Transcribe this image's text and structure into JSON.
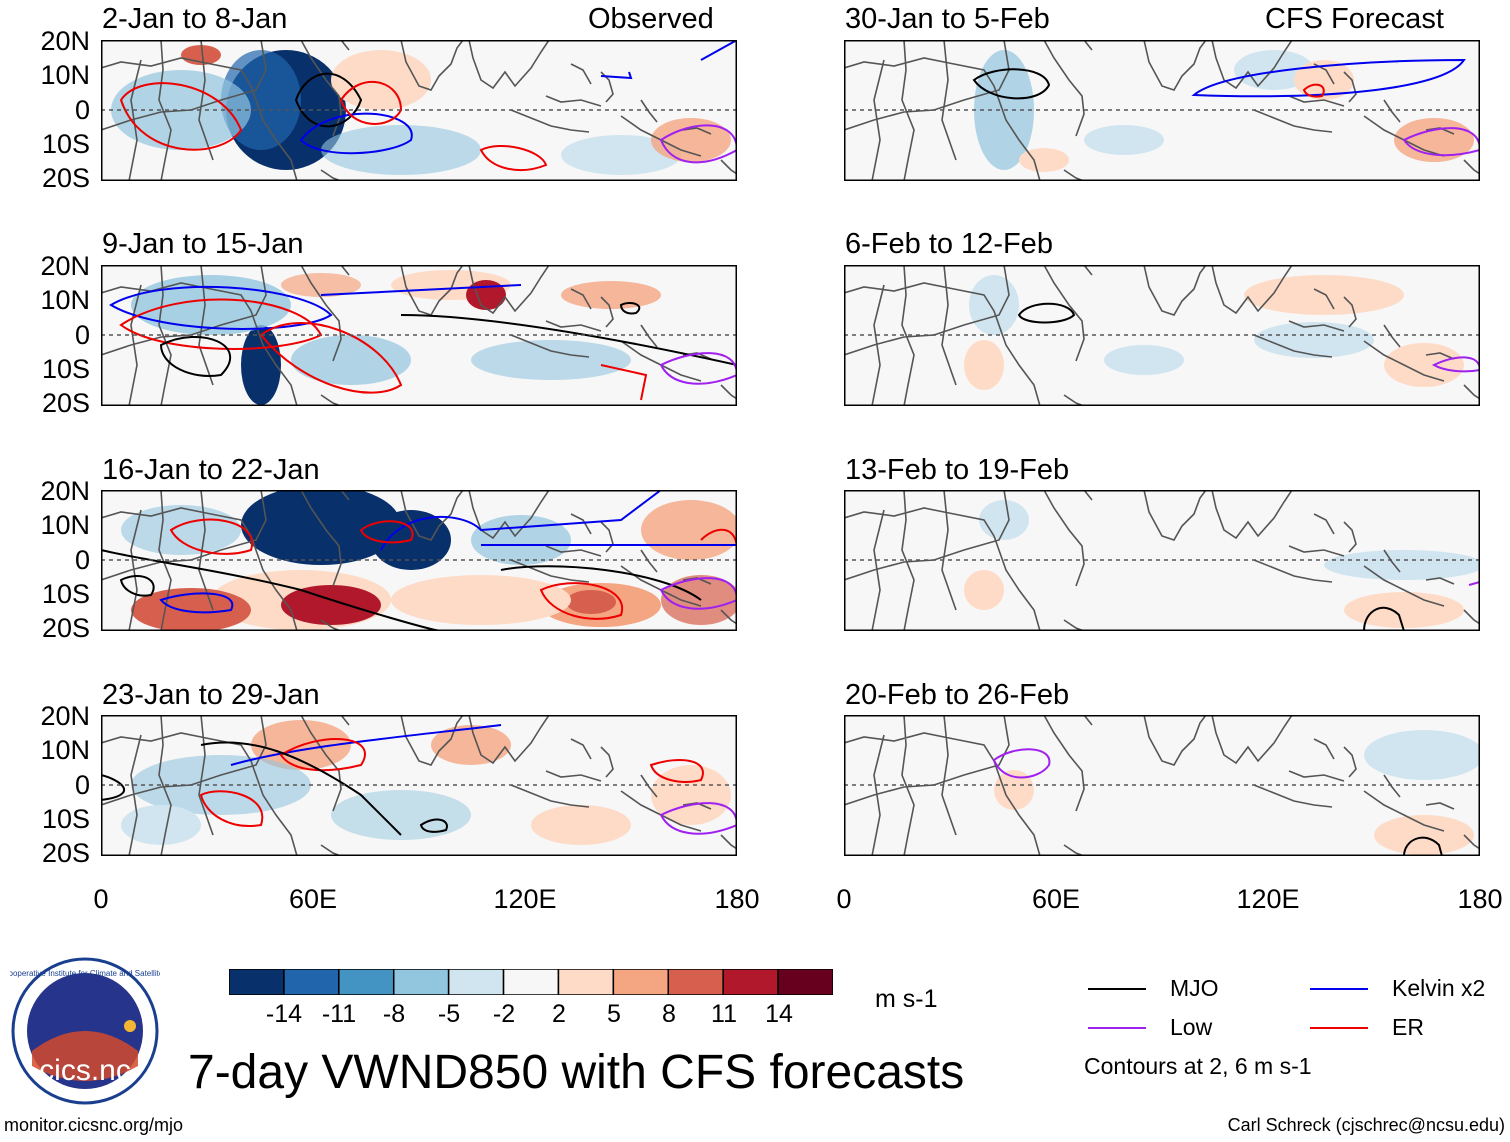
{
  "figure": {
    "title": "7-day VWND850 with CFS forecasts",
    "website": "monitor.cicsnc.org/mjo",
    "credit": "Carl Schreck (cjschrec@ncsu.edu)",
    "observed_label": "Observed",
    "forecast_label": "CFS Forecast"
  },
  "logo": {
    "text": "cics.nc",
    "ring_text": "Cooperative Institute for Climate and Satellites"
  },
  "axes": {
    "lat_labels": [
      "20N",
      "10N",
      "0",
      "10S",
      "20S"
    ],
    "lon_labels": [
      "0",
      "60E",
      "120E",
      "180"
    ]
  },
  "panels": {
    "observed": [
      {
        "period": "2-Jan to 8-Jan"
      },
      {
        "period": "9-Jan to 15-Jan"
      },
      {
        "period": "16-Jan to 22-Jan"
      },
      {
        "period": "23-Jan to 29-Jan"
      }
    ],
    "forecast": [
      {
        "period": "30-Jan to 5-Feb"
      },
      {
        "period": "6-Feb to 12-Feb"
      },
      {
        "period": "13-Feb to 19-Feb"
      },
      {
        "period": "20-Feb to 26-Feb"
      }
    ]
  },
  "colorbar": {
    "units": "m s-1",
    "ticks": [
      "-14",
      "-11",
      "-8",
      "-5",
      "-2",
      "2",
      "5",
      "8",
      "11",
      "14"
    ],
    "colors": [
      "#08306b",
      "#2166ac",
      "#4393c3",
      "#92c5de",
      "#d1e5f0",
      "#f7f7f7",
      "#fddbc7",
      "#f4a582",
      "#d6604d",
      "#b2182b",
      "#67001f"
    ]
  },
  "legend": {
    "items": [
      {
        "label": "MJO",
        "color": "#000000"
      },
      {
        "label": "Kelvin x2",
        "color": "#0000ee"
      },
      {
        "label": "Low",
        "color": "#a020f0"
      },
      {
        "label": "ER",
        "color": "#ee0000"
      }
    ],
    "note": "Contours at 2, 6 m s-1"
  }
}
